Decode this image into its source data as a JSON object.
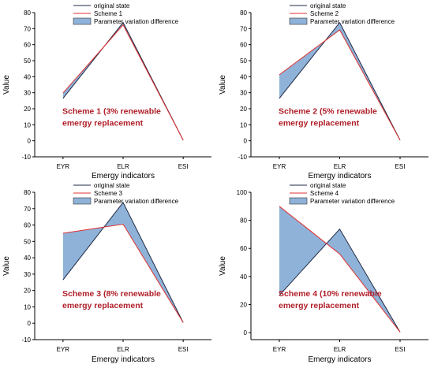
{
  "chart_data": [
    {
      "type": "line",
      "categories": [
        "EYR",
        "ELR",
        "ESI"
      ],
      "ylim": [
        -10,
        80
      ],
      "yticks": [
        -10,
        0,
        10,
        20,
        30,
        40,
        50,
        60,
        70,
        80
      ],
      "xlabel": "Emergy indicators",
      "ylabel": "Value",
      "annotation": [
        "Scheme 1 (3% renewable",
        "emergy replacement"
      ],
      "series": [
        {
          "name": "original state",
          "values": [
            26.5,
            73.8,
            0.4
          ],
          "color": "#1f2a44"
        },
        {
          "name": "Scheme 1",
          "values": [
            29.8,
            72.3,
            0.4
          ],
          "color": "#e03030"
        }
      ],
      "fill_legend": "Parameter variation difference",
      "fill_color": "#8fb2d8",
      "grid": false,
      "legend_position": "top-center"
    },
    {
      "type": "line",
      "categories": [
        "EYR",
        "ELR",
        "ESI"
      ],
      "ylim": [
        -10,
        80
      ],
      "yticks": [
        -10,
        0,
        10,
        20,
        30,
        40,
        50,
        60,
        70,
        80
      ],
      "xlabel": "Emergy indicators",
      "ylabel": "Value",
      "annotation": [
        "Scheme 2 (5% renewable",
        "emergy replacement"
      ],
      "series": [
        {
          "name": "original state",
          "values": [
            26.5,
            73.8,
            0.4
          ],
          "color": "#1f2a44"
        },
        {
          "name": "Scheme 2",
          "values": [
            41.2,
            69.2,
            0.4
          ],
          "color": "#e03030"
        }
      ],
      "fill_legend": "Parameter variation difference",
      "fill_color": "#8fb2d8",
      "grid": false,
      "legend_position": "top-center"
    },
    {
      "type": "line",
      "categories": [
        "EYR",
        "ELR",
        "ESI"
      ],
      "ylim": [
        -10,
        80
      ],
      "yticks": [
        -10,
        0,
        10,
        20,
        30,
        40,
        50,
        60,
        70,
        80
      ],
      "xlabel": "Emergy indicators",
      "ylabel": "Value",
      "annotation": [
        "Scheme 3 (8% renewable",
        "emergy replacement"
      ],
      "series": [
        {
          "name": "original state",
          "values": [
            26.5,
            73.8,
            0.4
          ],
          "color": "#1f2a44"
        },
        {
          "name": "Scheme 3",
          "values": [
            55.0,
            60.5,
            0.4
          ],
          "color": "#e03030"
        }
      ],
      "fill_legend": "Parameter variation difference",
      "fill_color": "#8fb2d8",
      "grid": false,
      "legend_position": "top-center"
    },
    {
      "type": "line",
      "categories": [
        "EYR",
        "ELR",
        "ESI"
      ],
      "ylim": [
        -5,
        100
      ],
      "yticks": [
        0,
        20,
        40,
        60,
        80,
        100
      ],
      "xlabel": "Emergy indicators",
      "ylabel": "Value",
      "annotation": [
        "Scheme 4 (10% renewable",
        "emergy replacement"
      ],
      "series": [
        {
          "name": "original state",
          "values": [
            26.5,
            73.8,
            0.4
          ],
          "color": "#1f2a44"
        },
        {
          "name": "Scheme 4",
          "values": [
            90.0,
            56.0,
            0.4
          ],
          "color": "#e03030"
        }
      ],
      "fill_legend": "Parameter variation difference",
      "fill_color": "#8fb2d8",
      "grid": false,
      "legend_position": "top-center"
    }
  ]
}
